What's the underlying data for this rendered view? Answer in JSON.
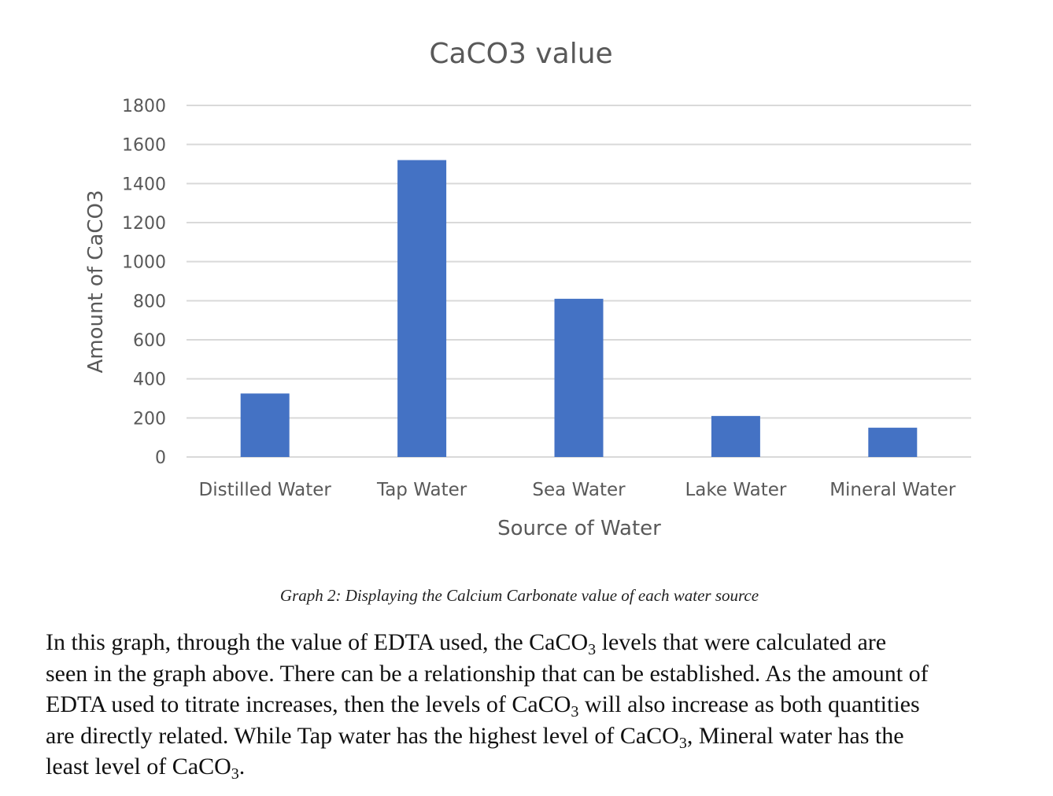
{
  "chart_data": {
    "type": "bar",
    "title": "CaCO3 value",
    "xlabel": "Source of Water",
    "ylabel": "Amount of CaCO3",
    "categories": [
      "Distilled Water",
      "Tap Water",
      "Sea Water",
      "Lake Water",
      "Mineral Water"
    ],
    "values": [
      325,
      1520,
      810,
      210,
      150
    ],
    "ylim": [
      0,
      1800
    ],
    "yticks": [
      "0",
      "200",
      "400",
      "600",
      "800",
      "1000",
      "1200",
      "1400",
      "1600",
      "1800"
    ],
    "grid": true,
    "legend": "none",
    "bar_color": "#4472c4"
  },
  "caption": "Graph 2: Displaying the Calcium Carbonate value of each water source",
  "paragraph": {
    "line1_a": "In this graph, through the value of EDTA used, the CaCO",
    "line1_sub": "3",
    "line1_b": " levels that were calculated are",
    "line2": "seen in the graph above. There can be a relationship that can be established. As the amount of",
    "line3_a": "EDTA used to titrate increases, then the levels of CaCO",
    "line3_sub": "3",
    "line3_b": " will also increase as both quantities",
    "line4_a": "are directly related. While Tap water has the highest level of CaCO",
    "line4_sub": "3",
    "line4_b": ", Mineral water has the",
    "line5_a": "least level of CaCO",
    "line5_sub": "3",
    "line5_b": "."
  }
}
